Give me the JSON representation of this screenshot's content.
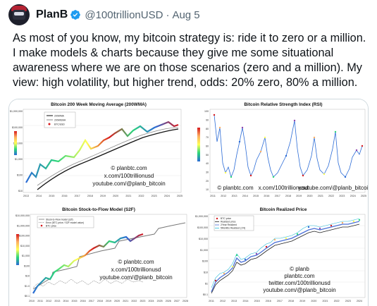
{
  "tweet": {
    "name": "PlanB",
    "handle": "@100trillionUSD",
    "separator": "·",
    "date": "Aug 5",
    "text": "As most of you know, my bitcoin strategy is: ride it to zero or a million. I make models & charts because they give me some situational awareness where we are on those scenarios (zero and a million). My view: high volatility, but higher trend, odds: 20% zero, 80% a million."
  },
  "icons": {
    "avatar": "avatar-image",
    "verified": "verified-badge-icon"
  },
  "colors": {
    "verified": "#1d9bf0",
    "text": "#0f1419",
    "secondary": "#536471",
    "border": "#cfd9de"
  },
  "charts": {
    "wma": {
      "title": "Bitcoin 200 Week Moving Average (200WMA)",
      "legend": [
        "200WMA",
        "200WEMA",
        "BTC/USD"
      ],
      "y_ticks": [
        "$1,000,000",
        "$100,000",
        "$10,000",
        "$1,000",
        "$100",
        "$10"
      ],
      "x_ticks": [
        "2013",
        "2014",
        "2015",
        "2016",
        "2017",
        "2018",
        "2019",
        "2020",
        "2021",
        "2022",
        "2023",
        "2024",
        "2025"
      ],
      "watermark": [
        "© planbtc.com",
        "x.com/100trillionusd",
        "youtube.com/@planb_bitcoin"
      ]
    },
    "rsi": {
      "title": "Bitcoin Relative Strength Index (RSI)",
      "y_ticks": [
        "100",
        "90",
        "80",
        "70",
        "60",
        "50",
        "40",
        "30",
        "20",
        "10"
      ],
      "x_ticks": [
        "2011",
        "2012",
        "2013",
        "2014",
        "2015",
        "2016",
        "2017",
        "2018",
        "2019",
        "2020",
        "2021",
        "2022",
        "2023",
        "2024",
        "2025"
      ],
      "watermark": [
        "© planbtc.com",
        "x.com/100trillionusd",
        "youtube.com/@planb_bitcoin"
      ]
    },
    "s2f": {
      "title": "Bitcoin Stock-to-Flow Model (S2F)",
      "legend": [
        "Stock-to-Flow model (s2f)",
        "Error (BTC price / S2F model value)",
        "BTC price"
      ],
      "y_ticks": [
        "$10,000,000",
        "$1,000,000",
        "$100,000",
        "$10,000",
        "$1,000",
        "$100",
        "$10",
        "$1.0",
        "$0.1"
      ],
      "x_ticks": [
        "2010",
        "2011",
        "2012",
        "2013",
        "2014",
        "2015",
        "2016",
        "2017",
        "2018",
        "2019",
        "2020",
        "2021",
        "2022",
        "2023",
        "2024",
        "2025",
        "2026",
        "2027",
        "2028"
      ],
      "watermark": [
        "© planbtc.com",
        "x.com/100trillionusd",
        "youtube.com/@planb_bitcoin"
      ]
    },
    "realized": {
      "title": "Bitcoin Realized Price",
      "legend": [
        "BTC price",
        "Realized price",
        "2Year Realized",
        "5Months Realized (1%)"
      ],
      "y_ticks": [
        "$1,000,000",
        "$100,000",
        "$10,000",
        "$1,000",
        "$100",
        "$10",
        "$1",
        "$0.1"
      ],
      "x_ticks": [
        "2011",
        "2012",
        "2013",
        "2014",
        "2015",
        "2016",
        "2017",
        "2018",
        "2019",
        "2020",
        "2021",
        "2022",
        "2023",
        "2024"
      ],
      "watermark": [
        "© planb",
        "planbtc.com",
        "twitter.com/100trillionusd",
        "youtube.com/@planb_bitcoin"
      ]
    }
  }
}
